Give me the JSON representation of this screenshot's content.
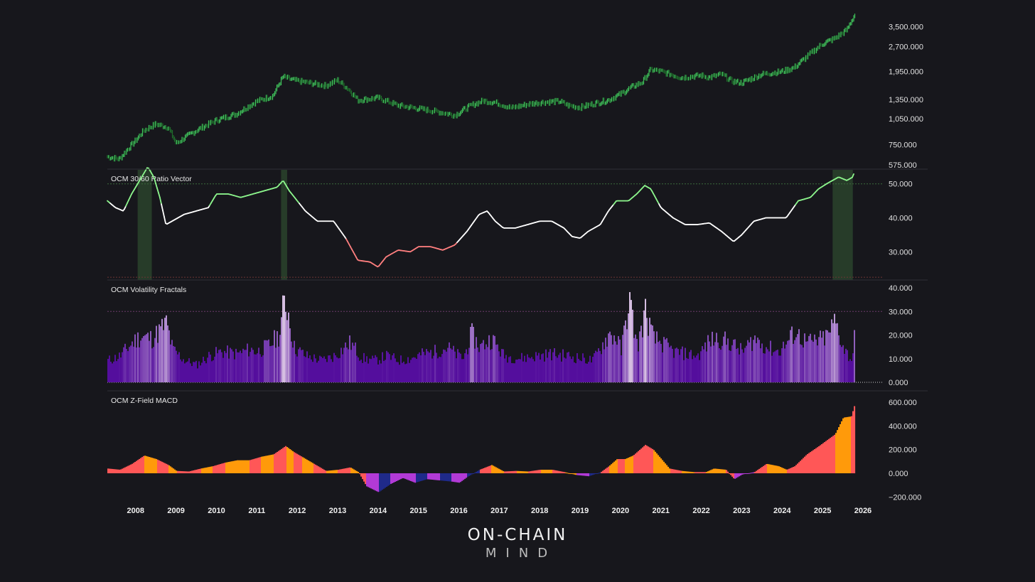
{
  "brand": {
    "line1": "ON-CHAIN",
    "line2": "MIND"
  },
  "colors": {
    "background": "#17171c",
    "price_up": "#3fbf5a",
    "price_down": "#1f6b2c",
    "ratio_high": "#8cf58c",
    "ratio_mid": "#ffffff",
    "ratio_low": "#ff7f7f",
    "highlight_band": "#2e4a2e",
    "fractal_purple": "#5a0ea8",
    "fractal_light": "#e6cdf2",
    "macd_red": "#ff5757",
    "macd_orange": "#ff9a0a",
    "macd_purple": "#b23ad6",
    "macd_navy": "#1f2a8a"
  },
  "chart_data": [
    {
      "type": "line",
      "panel": "price",
      "title": "",
      "scale": "log",
      "y_ticks": [
        "3,500.000",
        "2,700.000",
        "1,950.000",
        "1,350.000",
        "1,050.000",
        "750.000",
        "575.000"
      ],
      "y_tick_values": [
        3500,
        2700,
        1950,
        1350,
        1050,
        750,
        575
      ],
      "ylim": [
        575,
        4200
      ],
      "x": [
        2007.3,
        2007.6,
        2008.0,
        2008.2,
        2008.5,
        2008.8,
        2009.0,
        2009.5,
        2010.0,
        2010.5,
        2011.0,
        2011.4,
        2011.65,
        2011.9,
        2012.3,
        2012.7,
        2013.0,
        2013.3,
        2013.5,
        2014.0,
        2014.5,
        2015.0,
        2015.5,
        2015.9,
        2016.3,
        2016.6,
        2016.9,
        2017.3,
        2017.7,
        2018.0,
        2018.5,
        2018.7,
        2019.0,
        2019.4,
        2019.7,
        2020.0,
        2020.3,
        2020.55,
        2020.75,
        2021.0,
        2021.5,
        2022.0,
        2022.2,
        2022.5,
        2022.75,
        2023.0,
        2023.5,
        2024.0,
        2024.3,
        2024.6,
        2025.0,
        2025.3,
        2025.6,
        2025.8
      ],
      "values": [
        640,
        620,
        790,
        900,
        980,
        940,
        760,
        900,
        1030,
        1120,
        1320,
        1420,
        1820,
        1740,
        1680,
        1620,
        1740,
        1520,
        1340,
        1380,
        1250,
        1200,
        1150,
        1100,
        1250,
        1330,
        1300,
        1210,
        1270,
        1300,
        1320,
        1250,
        1220,
        1290,
        1340,
        1450,
        1600,
        1700,
        2000,
        1950,
        1800,
        1850,
        1800,
        1880,
        1720,
        1680,
        1880,
        1950,
        2050,
        2350,
        2800,
        3000,
        3350,
        4100
      ]
    },
    {
      "type": "line",
      "panel": "ratio",
      "title": "OCM 30/60 Ratio Vector",
      "y_ticks": [
        "50.000",
        "40.000",
        "30.000"
      ],
      "y_tick_values": [
        50,
        40,
        30
      ],
      "ylim": [
        24,
        56
      ],
      "upper_threshold": 50,
      "lower_threshold": 22.5,
      "highlight_ranges": [
        [
          2008.05,
          2008.4
        ],
        [
          2011.6,
          2011.75
        ],
        [
          2025.25,
          2025.75
        ]
      ],
      "x": [
        2007.3,
        2007.5,
        2007.7,
        2007.9,
        2008.1,
        2008.3,
        2008.45,
        2008.6,
        2008.75,
        2008.9,
        2009.2,
        2009.5,
        2009.8,
        2010.0,
        2010.3,
        2010.6,
        2010.9,
        2011.2,
        2011.5,
        2011.65,
        2011.8,
        2012.0,
        2012.2,
        2012.5,
        2012.9,
        2013.2,
        2013.5,
        2013.8,
        2014.0,
        2014.2,
        2014.5,
        2014.8,
        2015.0,
        2015.3,
        2015.6,
        2015.9,
        2016.2,
        2016.5,
        2016.7,
        2016.9,
        2017.1,
        2017.4,
        2017.7,
        2018.0,
        2018.3,
        2018.6,
        2018.8,
        2019.0,
        2019.2,
        2019.5,
        2019.7,
        2019.9,
        2020.2,
        2020.4,
        2020.6,
        2020.75,
        2021.0,
        2021.3,
        2021.6,
        2021.9,
        2022.2,
        2022.5,
        2022.8,
        2023.0,
        2023.3,
        2023.6,
        2023.9,
        2024.1,
        2024.4,
        2024.7,
        2024.9,
        2025.1,
        2025.4,
        2025.6,
        2025.75,
        2025.8
      ],
      "values": [
        45,
        43,
        42,
        47,
        51,
        55,
        52,
        46,
        38,
        39,
        41,
        42,
        43,
        47,
        47,
        46,
        47,
        48,
        49,
        51,
        48,
        45,
        42,
        39,
        39,
        34,
        27.5,
        27,
        25.5,
        28.5,
        30.5,
        30,
        31.5,
        31.5,
        30.5,
        32,
        36,
        41,
        42,
        39,
        37,
        37,
        38,
        39,
        39,
        37,
        34.5,
        34,
        36,
        38,
        42,
        45,
        45,
        47,
        49.5,
        48.5,
        43,
        40,
        38,
        38,
        38.5,
        36,
        33,
        35,
        39,
        40,
        40,
        40,
        45,
        46,
        48.5,
        50,
        52,
        51,
        52,
        54
      ]
    },
    {
      "type": "bar",
      "panel": "fractals",
      "title": "OCM Volatility Fractals",
      "y_ticks": [
        "40.000",
        "30.000",
        "20.000",
        "10.000",
        "0.000"
      ],
      "y_tick_values": [
        40,
        30,
        20,
        10,
        0
      ],
      "ylim": [
        0,
        40
      ],
      "threshold": 30,
      "x": [
        2007.3,
        2007.6,
        2007.9,
        2008.1,
        2008.4,
        2008.6,
        2008.75,
        2008.9,
        2009.2,
        2009.5,
        2009.8,
        2010.1,
        2010.5,
        2010.8,
        2011.0,
        2011.3,
        2011.55,
        2011.65,
        2011.75,
        2011.9,
        2012.2,
        2012.6,
        2012.9,
        2013.3,
        2013.6,
        2013.9,
        2014.2,
        2014.5,
        2014.8,
        2015.1,
        2015.4,
        2015.7,
        2015.9,
        2016.1,
        2016.3,
        2016.5,
        2016.8,
        2017.1,
        2017.5,
        2017.9,
        2018.3,
        2018.7,
        2019.0,
        2019.3,
        2019.5,
        2019.7,
        2019.9,
        2020.0,
        2020.2,
        2020.4,
        2020.6,
        2020.8,
        2021.0,
        2021.3,
        2021.6,
        2021.9,
        2022.2,
        2022.4,
        2022.7,
        2023.0,
        2023.3,
        2023.6,
        2023.9,
        2024.1,
        2024.3,
        2024.6,
        2024.9,
        2025.1,
        2025.3,
        2025.5,
        2025.7,
        2025.8
      ],
      "values": [
        10,
        12,
        18,
        21,
        20,
        24,
        27,
        15,
        10,
        8,
        12,
        14,
        13,
        15,
        14,
        17,
        22,
        36,
        34,
        16,
        12,
        10,
        12,
        18,
        11,
        10,
        12,
        10,
        11,
        13,
        14,
        16,
        13,
        11,
        22,
        16,
        20,
        12,
        11,
        12,
        13,
        12,
        11,
        10,
        16,
        22,
        20,
        14,
        38,
        16,
        32,
        20,
        18,
        14,
        13,
        12,
        19,
        20,
        18,
        14,
        20,
        16,
        14,
        18,
        23,
        18,
        19,
        21,
        28,
        16,
        10,
        24
      ],
      "highlight_values_above": 20
    },
    {
      "type": "bar",
      "panel": "macd",
      "title": "OCM Z-Field MACD",
      "y_ticks": [
        "600.000",
        "400.000",
        "200.000",
        "0.000",
        "−200.000"
      ],
      "y_tick_values": [
        600,
        400,
        200,
        0,
        -200
      ],
      "ylim": [
        -210,
        600
      ],
      "x": [
        2007.3,
        2007.6,
        2007.9,
        2008.2,
        2008.5,
        2008.8,
        2009.0,
        2009.3,
        2009.6,
        2009.9,
        2010.2,
        2010.5,
        2010.8,
        2011.1,
        2011.4,
        2011.7,
        2011.9,
        2012.1,
        2012.4,
        2012.7,
        2013.0,
        2013.3,
        2013.5,
        2013.7,
        2014.0,
        2014.3,
        2014.6,
        2014.9,
        2015.2,
        2015.5,
        2015.8,
        2016.0,
        2016.2,
        2016.5,
        2016.8,
        2017.1,
        2017.4,
        2017.7,
        2018.0,
        2018.3,
        2018.6,
        2018.9,
        2019.2,
        2019.5,
        2019.7,
        2019.9,
        2020.1,
        2020.3,
        2020.6,
        2020.8,
        2021.0,
        2021.2,
        2021.5,
        2021.8,
        2022.1,
        2022.3,
        2022.6,
        2022.8,
        2023.0,
        2023.3,
        2023.6,
        2023.9,
        2024.1,
        2024.3,
        2024.6,
        2024.9,
        2025.1,
        2025.3,
        2025.5,
        2025.7,
        2025.8
      ],
      "values": [
        40,
        30,
        80,
        150,
        120,
        70,
        20,
        15,
        40,
        60,
        90,
        110,
        110,
        140,
        160,
        230,
        180,
        140,
        80,
        20,
        30,
        50,
        10,
        -110,
        -160,
        -90,
        -40,
        -80,
        -50,
        -60,
        -70,
        -80,
        -30,
        30,
        70,
        15,
        20,
        15,
        30,
        30,
        10,
        -15,
        -25,
        10,
        60,
        120,
        120,
        150,
        240,
        200,
        120,
        40,
        20,
        10,
        10,
        40,
        30,
        -50,
        -10,
        10,
        80,
        60,
        30,
        60,
        160,
        230,
        280,
        330,
        470,
        480,
        600
      ],
      "bar_colors": [
        "red",
        "red",
        "red",
        "orange",
        "red",
        "orange",
        "red",
        "red",
        "orange",
        "red",
        "orange",
        "orange",
        "red",
        "orange",
        "red",
        "orange",
        "red",
        "orange",
        "red",
        "orange",
        "red",
        "orange",
        "red",
        "purple",
        "navy",
        "purple",
        "purple",
        "navy",
        "purple",
        "navy",
        "purple",
        "purple",
        "navy",
        "red",
        "orange",
        "red",
        "orange",
        "red",
        "orange",
        "red",
        "orange",
        "purple",
        "navy",
        "red",
        "orange",
        "red",
        "orange",
        "red",
        "red",
        "orange",
        "orange",
        "red",
        "orange",
        "red",
        "orange",
        "orange",
        "red",
        "purple",
        "purple",
        "red",
        "orange",
        "orange",
        "red",
        "red",
        "red",
        "red",
        "red",
        "orange",
        "orange",
        "red",
        "red"
      ]
    }
  ],
  "x_axis": {
    "labels": [
      "2008",
      "2009",
      "2010",
      "2011",
      "2012",
      "2013",
      "2014",
      "2015",
      "2016",
      "2017",
      "2018",
      "2019",
      "2020",
      "2021",
      "2022",
      "2023",
      "2024",
      "2025",
      "2026"
    ],
    "values": [
      2008,
      2009,
      2010,
      2011,
      2012,
      2013,
      2014,
      2015,
      2016,
      2017,
      2018,
      2019,
      2020,
      2021,
      2022,
      2023,
      2024,
      2025,
      2026
    ],
    "xlim": [
      2007.3,
      2026.3
    ]
  }
}
